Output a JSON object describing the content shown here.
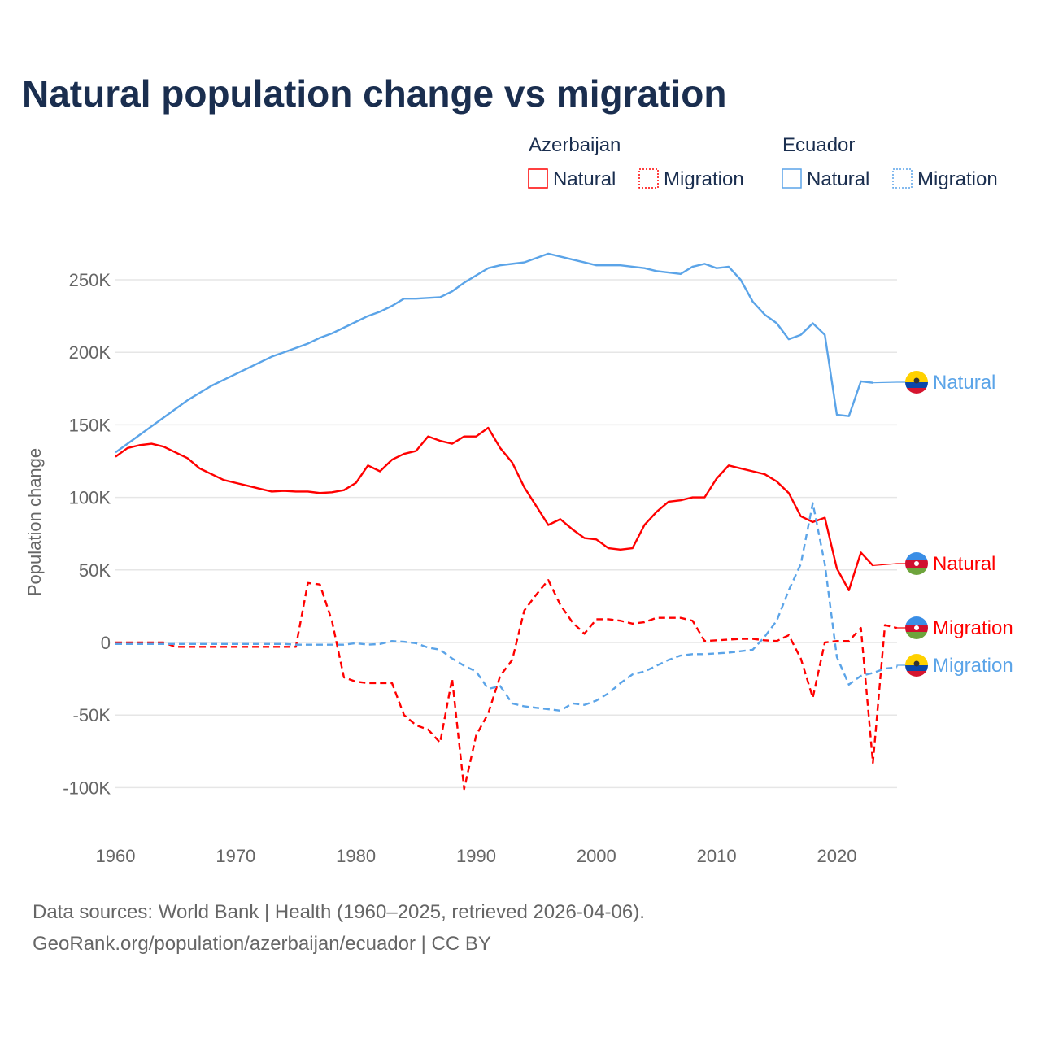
{
  "chart_data": {
    "type": "line",
    "title": "Natural population change vs migration",
    "xlabel": "",
    "ylabel": "Population change",
    "ylim": [
      -100000,
      250000
    ],
    "xlim": [
      1960,
      2025
    ],
    "grid": true,
    "y_ticks": [
      {
        "v": -100000,
        "label": "-100K"
      },
      {
        "v": -50000,
        "label": "-50K"
      },
      {
        "v": 0,
        "label": "0"
      },
      {
        "v": 50000,
        "label": "50K"
      },
      {
        "v": 100000,
        "label": "100K"
      },
      {
        "v": 150000,
        "label": "150K"
      },
      {
        "v": 200000,
        "label": "200K"
      },
      {
        "v": 250000,
        "label": "250K"
      }
    ],
    "x_ticks": [
      "1960",
      "1970",
      "1980",
      "1990",
      "2000",
      "2010",
      "2020"
    ],
    "legend": {
      "placement": "top-right",
      "groups": [
        {
          "country": "Azerbaijan",
          "items": [
            "Natural",
            "Migration"
          ]
        },
        {
          "country": "Ecuador",
          "items": [
            "Natural",
            "Migration"
          ]
        }
      ]
    },
    "series": [
      {
        "name": "Ecuador Natural",
        "country": "Ecuador",
        "kind": "Natural",
        "color": "#5ba4e8",
        "dashed": false,
        "label": "Natural",
        "start": 1960,
        "values": [
          131,
          137,
          143,
          149,
          155,
          161,
          167,
          172,
          177,
          181,
          185,
          189,
          193,
          197,
          200,
          203,
          206,
          210,
          213,
          217,
          221,
          225,
          228,
          232,
          237,
          237,
          237.5,
          238,
          242,
          248,
          253,
          258,
          260,
          261,
          262,
          265,
          268,
          266,
          264,
          262,
          260,
          260,
          260,
          259,
          258,
          256,
          255,
          254,
          259,
          261,
          258,
          259,
          250,
          235,
          226,
          220,
          209,
          212,
          220,
          212,
          157,
          156,
          180,
          179
        ]
      },
      {
        "name": "Azerbaijan Natural",
        "country": "Azerbaijan",
        "kind": "Natural",
        "color": "#ff0000",
        "dashed": false,
        "label": "Natural",
        "start": 1960,
        "values": [
          128,
          134,
          136,
          137,
          135,
          131,
          127,
          120,
          116,
          112,
          110,
          108,
          106,
          104,
          104.5,
          104,
          104,
          103,
          103.5,
          105,
          110,
          122,
          118,
          126,
          130,
          132,
          142,
          139,
          137,
          142,
          142,
          148,
          134,
          124,
          107,
          94,
          81,
          85,
          78,
          72,
          71,
          65,
          64,
          65,
          81,
          90,
          97,
          98,
          100,
          100,
          113,
          122,
          120,
          118,
          116,
          111,
          103,
          87,
          83,
          86,
          51,
          36,
          62,
          53
        ]
      },
      {
        "name": "Azerbaijan Migration",
        "country": "Azerbaijan",
        "kind": "Migration",
        "color": "#ff0000",
        "dashed": true,
        "label": "Migration",
        "start": 1960,
        "values": [
          0,
          0,
          0,
          0,
          0,
          -3,
          -3,
          -3,
          -3,
          -3,
          -3,
          -3,
          -3,
          -3,
          -3,
          -3,
          41,
          40,
          15,
          -24,
          -27,
          -28,
          -28,
          -28,
          -50,
          -57,
          -60,
          -69,
          -25,
          -101,
          -64,
          -49,
          -23,
          -12,
          22,
          33,
          43,
          26,
          14,
          6,
          16,
          16,
          15,
          13,
          14,
          17,
          17,
          17,
          15,
          1,
          1.5,
          2,
          2.5,
          2.5,
          1.5,
          1,
          5,
          -11,
          -38,
          0,
          1,
          1,
          10,
          -83,
          12,
          10
        ]
      },
      {
        "name": "Ecuador Migration",
        "country": "Ecuador",
        "kind": "Migration",
        "color": "#5ba4e8",
        "dashed": true,
        "label": "Migration",
        "start": 1960,
        "values": [
          -1,
          -1,
          -1,
          -1,
          -1,
          -1,
          -1,
          -1,
          -1,
          -1,
          -1,
          -1,
          -1,
          -1,
          -1,
          -1.5,
          -1.5,
          -1.5,
          -1.5,
          -1.5,
          -0.5,
          -1.5,
          -1,
          1,
          0.5,
          -0.5,
          -3.5,
          -5,
          -11,
          -16,
          -20,
          -32,
          -30,
          -42,
          -44,
          -45,
          -46,
          -47,
          -42,
          -43,
          -40,
          -35,
          -28,
          -22,
          -20,
          -16,
          -12,
          -9,
          -8,
          -8,
          -7.5,
          -7,
          -6,
          -5,
          4,
          15,
          36,
          54,
          96,
          54,
          -10,
          -29,
          -23,
          -21,
          -18,
          -17
        ]
      }
    ],
    "value_unit": "thousands"
  },
  "footer": {
    "line1": "Data sources: World Bank | Health (1960–2025, retrieved 2026-04-06).",
    "line2": "GeoRank.org/population/azerbaijan/ecuador | CC BY"
  }
}
